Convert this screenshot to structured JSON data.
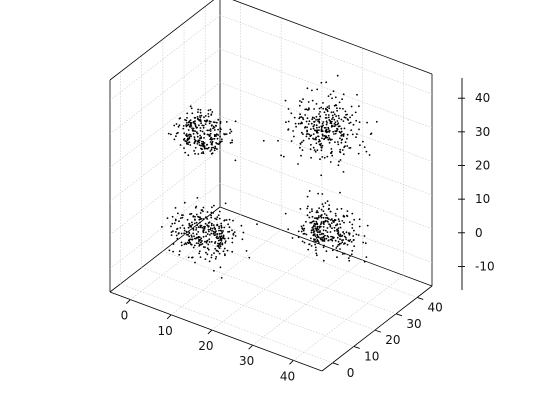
{
  "chart_data": {
    "type": "scatter",
    "projection": "3d",
    "title": "",
    "xlabel": "",
    "ylabel": "",
    "zlabel": "",
    "x_ticks": [
      0,
      10,
      20,
      30,
      40
    ],
    "y_ticks": [
      0,
      10,
      20,
      30,
      40
    ],
    "z_ticks": [
      -10,
      0,
      10,
      20,
      30,
      40
    ],
    "xlim": [
      -5,
      47
    ],
    "ylim": [
      -5,
      47
    ],
    "zlim": [
      -17,
      46
    ],
    "grid": true,
    "marker_color": "#000000",
    "clusters": [
      {
        "center": [
          10,
          10,
          30
        ],
        "shape": "hollow-ring",
        "inner_radius": 3,
        "outer_radius": 7,
        "points": 260
      },
      {
        "center": [
          10,
          10,
          0
        ],
        "shape": "hollow-ring",
        "inner_radius": 3,
        "outer_radius": 9,
        "points": 320
      },
      {
        "center": [
          30,
          30,
          30
        ],
        "shape": "filled-blob",
        "radius": 9,
        "points": 330
      },
      {
        "center": [
          30,
          30,
          0
        ],
        "shape": "hollow-ring",
        "inner_radius": 2.5,
        "outer_radius": 8,
        "points": 290
      }
    ]
  }
}
